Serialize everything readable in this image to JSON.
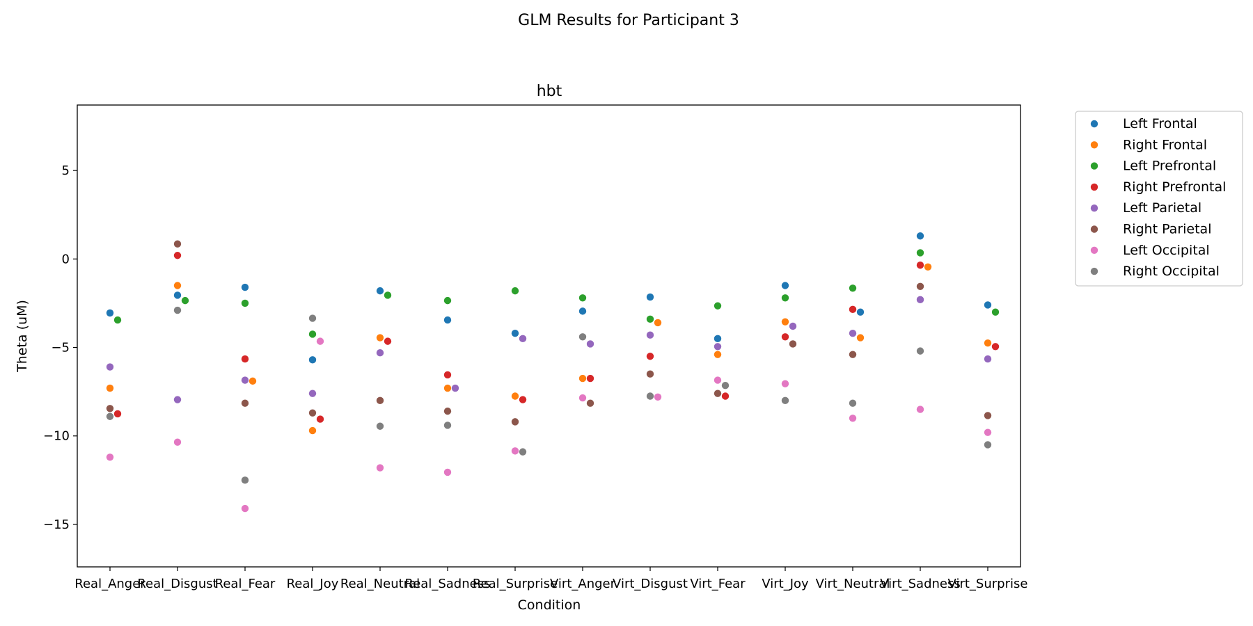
{
  "figure": {
    "suptitle": "GLM Results for Participant 3"
  },
  "chart_data": {
    "type": "scatter",
    "title": "hbt",
    "xlabel": "Condition",
    "ylabel": "Theta (uM)",
    "ylim": [
      -17.4,
      8.7
    ],
    "yticks": [
      5,
      0,
      -5,
      -10,
      -15
    ],
    "grid": false,
    "legend_position": "outside-right",
    "categories": [
      "Real_Anger",
      "Real_Disgust",
      "Real_Fear",
      "Real_Joy",
      "Real_Neutral",
      "Real_Sadness",
      "Real_Surprise",
      "Virt_Anger",
      "Virt_Disgust",
      "Virt_Fear",
      "Virt_Joy",
      "Virt_Neutral",
      "Virt_Sadness",
      "Virt_Surprise"
    ],
    "series": [
      {
        "name": "Left Frontal",
        "color": "#1f77b4",
        "values": [
          -3.05,
          -2.05,
          -1.6,
          -5.7,
          -1.8,
          -3.45,
          -4.2,
          -2.95,
          -2.15,
          -4.5,
          -1.5,
          -3.0,
          1.3,
          -2.6
        ]
      },
      {
        "name": "Right Frontal",
        "color": "#ff7f0e",
        "values": [
          -7.3,
          -1.5,
          -6.9,
          -9.7,
          -4.45,
          -7.3,
          -7.75,
          -6.75,
          -3.6,
          -5.4,
          -3.55,
          -4.45,
          -0.45,
          -4.75
        ]
      },
      {
        "name": "Left Prefrontal",
        "color": "#2ca02c",
        "values": [
          -3.45,
          -2.35,
          -2.5,
          -4.25,
          -2.05,
          -2.35,
          -1.8,
          -2.2,
          -3.4,
          -2.65,
          -2.2,
          -1.65,
          0.35,
          -3.0
        ]
      },
      {
        "name": "Right Prefrontal",
        "color": "#d62728",
        "values": [
          -8.75,
          0.2,
          -5.65,
          -9.05,
          -4.65,
          -6.55,
          -7.95,
          -6.75,
          -5.5,
          -7.75,
          -4.4,
          -2.85,
          -0.35,
          -4.95
        ]
      },
      {
        "name": "Left Parietal",
        "color": "#9467bd",
        "values": [
          -6.1,
          -7.95,
          -6.85,
          -7.6,
          -5.3,
          -7.3,
          -4.5,
          -4.8,
          -4.3,
          -4.95,
          -3.8,
          -4.2,
          -2.3,
          -5.65
        ]
      },
      {
        "name": "Right Parietal",
        "color": "#8c564b",
        "values": [
          -8.45,
          0.85,
          -8.15,
          -8.7,
          -8.0,
          -8.6,
          -9.2,
          -8.15,
          -6.5,
          -7.6,
          -4.8,
          -5.4,
          -1.55,
          -8.85
        ]
      },
      {
        "name": "Left Occipital",
        "color": "#e377c2",
        "values": [
          -11.2,
          -10.35,
          -14.1,
          -4.65,
          -11.8,
          -12.05,
          -10.85,
          -7.85,
          -7.8,
          -6.85,
          -7.05,
          -9.0,
          -8.5,
          -9.8
        ]
      },
      {
        "name": "Right Occipital",
        "color": "#7f7f7f",
        "values": [
          -8.9,
          -2.9,
          -12.5,
          -3.35,
          -9.45,
          -9.4,
          -10.9,
          -4.4,
          -7.75,
          -7.15,
          -8.0,
          -8.15,
          -5.2,
          -10.5
        ]
      }
    ]
  }
}
